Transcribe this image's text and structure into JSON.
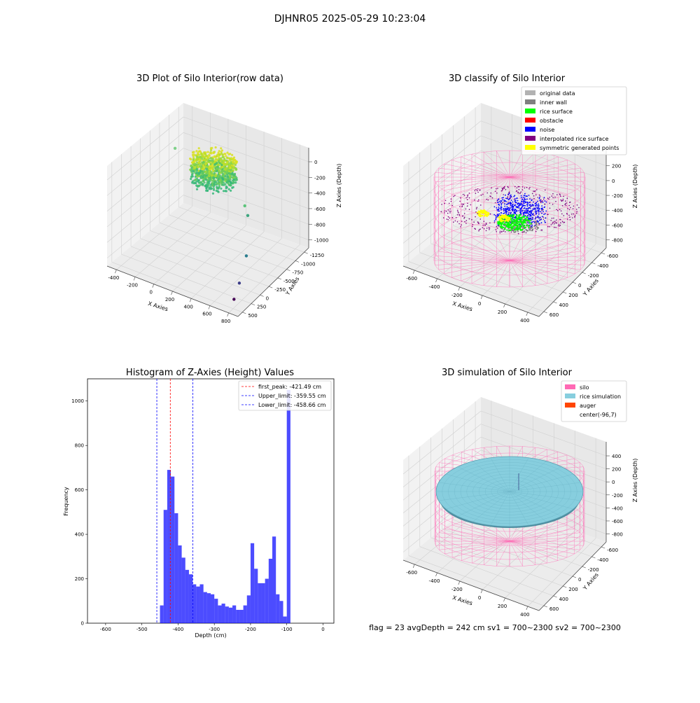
{
  "figure": {
    "suptitle": "DJHNR05 2025-05-29 10:23:04",
    "status_line": "flag = 23   avgDepth = 242 cm   sv1 = 700~2300   sv2 = 700~2300"
  },
  "chart_data": [
    {
      "type": "scatter",
      "projection": "3d",
      "title": "3D Plot of Silo Interior(row data)",
      "xlabel": "X Axies",
      "ylabel": "Y Axies",
      "zlabel": "Z Axies (Depth)",
      "xticks": [
        "-400",
        "-200",
        "0",
        "200",
        "400",
        "600",
        "800"
      ],
      "yticks": [
        "500",
        "250",
        "0",
        "-250",
        "-500",
        "-750",
        "-1000",
        "-1250"
      ],
      "zticks": [
        "0",
        "-200",
        "-400",
        "-600",
        "-800",
        "-1000"
      ],
      "xlim": [
        -480,
        880
      ],
      "ylim": [
        -1350,
        600
      ],
      "zlim": [
        -1050,
        0
      ],
      "colormap": "viridis",
      "cluster": {
        "x_range": [
          -150,
          300
        ],
        "y_range": [
          -250,
          350
        ],
        "z_range": [
          -380,
          -60
        ]
      },
      "outliers": [
        {
          "x": -380,
          "y": 150,
          "z": -180,
          "color": "#7fd18a"
        },
        {
          "x": 500,
          "y": -180,
          "z": -400,
          "color": "#5bc47a"
        },
        {
          "x": 560,
          "y": -250,
          "z": -470,
          "color": "#3da67f"
        },
        {
          "x": 700,
          "y": -650,
          "z": -760,
          "color": "#2a7d8e"
        },
        {
          "x": 780,
          "y": -1050,
          "z": -900,
          "color": "#3b3c87"
        },
        {
          "x": 820,
          "y": -1300,
          "z": -980,
          "color": "#440154"
        }
      ]
    },
    {
      "type": "scatter",
      "projection": "3d",
      "title": "3D classify of Silo Interior",
      "xlabel": "X Axies",
      "ylabel": "Y Axies",
      "zlabel": "Z Axies (Depth)",
      "xticks": [
        "-600",
        "-400",
        "-200",
        "0",
        "200",
        "400"
      ],
      "yticks": [
        "600",
        "400",
        "200",
        "0",
        "-200",
        "-400",
        "-600"
      ],
      "zticks": [
        "200",
        "0",
        "-200",
        "-400",
        "-600",
        "-800"
      ],
      "legend_position": "upper right",
      "legend": [
        {
          "label": "original data",
          "color": "#b2b2b2"
        },
        {
          "label": "inner wall",
          "color": "#808080"
        },
        {
          "label": "rice surface",
          "color": "#00ff00"
        },
        {
          "label": "obstacle",
          "color": "#ff0000"
        },
        {
          "label": "noise",
          "color": "#0000ff"
        },
        {
          "label": "interpolated rice surface",
          "color": "#800080"
        },
        {
          "label": "symmetric generated points",
          "color": "#ffff00"
        }
      ]
    },
    {
      "type": "bar",
      "title": "Histogram of Z-Axies (Height) Values",
      "xlabel": "Depth (cm)",
      "ylabel": "Frequency",
      "xlim": [
        -650,
        30
      ],
      "ylim": [
        0,
        1100
      ],
      "xticks": [
        "-600",
        "-500",
        "-400",
        "-300",
        "-200",
        "-100",
        "0"
      ],
      "yticks": [
        "0",
        "200",
        "400",
        "600",
        "800",
        "1000"
      ],
      "bin_start": -450,
      "bin_width": 10,
      "values": [
        80,
        510,
        690,
        660,
        495,
        350,
        295,
        240,
        220,
        175,
        165,
        175,
        140,
        135,
        130,
        110,
        80,
        88,
        75,
        70,
        80,
        60,
        60,
        80,
        125,
        360,
        245,
        180,
        180,
        200,
        290,
        390,
        130,
        100,
        30,
        1050
      ],
      "bar_color": "#0000ff",
      "lines": [
        {
          "value": -421.49,
          "color": "#ff0000",
          "label": "first_peak: -421.49 cm"
        },
        {
          "value": -359.55,
          "color": "#0000ff",
          "label": "Upper_limit: -359.55 cm"
        },
        {
          "value": -458.66,
          "color": "#0000ff",
          "label": "Lower_limit: -458.66 cm"
        }
      ],
      "legend_position": "upper right"
    },
    {
      "type": "surface",
      "projection": "3d",
      "title": "3D simulation of Silo Interior",
      "xlabel": "X Axies",
      "ylabel": "Y Axies",
      "zlabel": "Z Axies (Depth)",
      "xticks": [
        "-600",
        "-400",
        "-200",
        "0",
        "200",
        "400"
      ],
      "yticks": [
        "600",
        "400",
        "200",
        "0",
        "-200",
        "-400",
        "-600"
      ],
      "zticks": [
        "400",
        "200",
        "0",
        "-200",
        "-400",
        "-600",
        "-800"
      ],
      "legend_position": "upper right",
      "legend": [
        {
          "label": "silo",
          "color": "#ff69b4"
        },
        {
          "label": "rice simulation",
          "color": "#87cede"
        },
        {
          "label": "auger",
          "color": "#ff4500"
        },
        {
          "label": "center(-96,7)",
          "color": ""
        }
      ]
    }
  ]
}
